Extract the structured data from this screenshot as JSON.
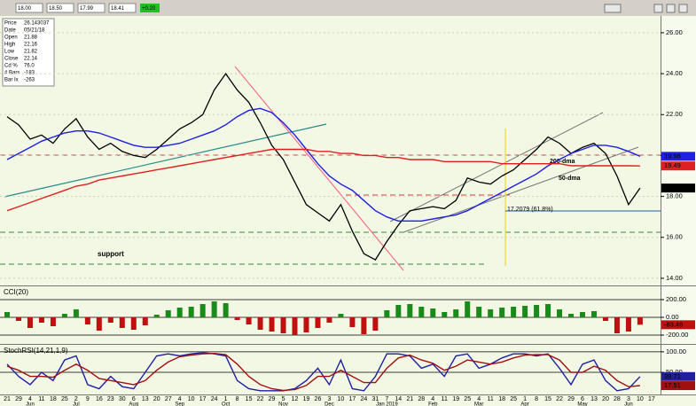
{
  "toolbar": {
    "values": [
      "18.00",
      "18.50",
      "17.99",
      "18.41"
    ],
    "change": "+0.20"
  },
  "info": {
    "rows": [
      [
        "Price",
        "26.143037"
      ],
      [
        "Date",
        "05/21/18"
      ],
      [
        "Open",
        "21.88"
      ],
      [
        "High",
        "22.16"
      ],
      [
        "Low",
        "21.82"
      ],
      [
        "Close",
        "22.14"
      ],
      [
        "Cd %",
        "76.0"
      ],
      [
        "# Bars",
        "-183"
      ],
      [
        "Bar Ix",
        "-263"
      ]
    ]
  },
  "chart_data": [
    {
      "type": "line",
      "categories": [
        "21",
        "29",
        "4",
        "11",
        "18",
        "25",
        "2",
        "9",
        "16",
        "23",
        "30",
        "6",
        "13",
        "20",
        "27",
        "4",
        "10",
        "17",
        "24",
        "1",
        "8",
        "15",
        "22",
        "29",
        "5",
        "12",
        "19",
        "26",
        "3",
        "10",
        "17",
        "24",
        "31",
        "7",
        "14",
        "21",
        "28",
        "4",
        "11",
        "19",
        "25",
        "4",
        "11",
        "18",
        "25",
        "1",
        "8",
        "15",
        "22",
        "29",
        "6",
        "13",
        "20",
        "28",
        "3",
        "10",
        "17"
      ],
      "month_labels": [
        null,
        null,
        "Jun",
        null,
        null,
        null,
        "Jul",
        null,
        null,
        null,
        null,
        "Aug",
        null,
        null,
        null,
        "Sep",
        null,
        null,
        null,
        "Oct",
        null,
        null,
        null,
        null,
        "Nov",
        null,
        null,
        null,
        "Dec",
        null,
        null,
        null,
        null,
        "Jan 2019",
        null,
        null,
        null,
        "Feb",
        null,
        null,
        null,
        "Mar",
        null,
        null,
        null,
        "Apr",
        null,
        null,
        null,
        null,
        "May",
        null,
        null,
        null,
        "Jun",
        null,
        null
      ],
      "series": [
        {
          "color": "#000000",
          "values": [
            21.9,
            21.5,
            20.8,
            21.0,
            20.6,
            21.3,
            21.8,
            20.9,
            20.3,
            20.6,
            20.2,
            20.0,
            19.9,
            20.3,
            20.8,
            21.3,
            21.6,
            22.0,
            23.2,
            24.0,
            23.2,
            22.6,
            21.6,
            20.5,
            19.8,
            18.7,
            17.6,
            17.2,
            16.8,
            17.6,
            16.3,
            15.2,
            14.9,
            15.8,
            16.6,
            17.3,
            17.4,
            17.5,
            17.4,
            17.8,
            18.9,
            18.7,
            18.6,
            19.0,
            19.3,
            19.8,
            20.3,
            20.9,
            20.6,
            20.1,
            20.4,
            20.6,
            20.1,
            19.0,
            17.6,
            18.41,
            null
          ]
        },
        {
          "name": "50-dma",
          "color": "#1f1fe0",
          "values": [
            19.8,
            20.1,
            20.4,
            20.7,
            20.9,
            21.1,
            21.2,
            21.2,
            21.1,
            20.9,
            20.7,
            20.5,
            20.4,
            20.4,
            20.5,
            20.6,
            20.8,
            21.0,
            21.2,
            21.5,
            21.9,
            22.2,
            22.3,
            22.1,
            21.6,
            21.0,
            20.3,
            19.6,
            19.0,
            18.6,
            18.3,
            17.8,
            17.3,
            17.0,
            16.8,
            16.8,
            16.8,
            16.9,
            17.0,
            17.1,
            17.3,
            17.6,
            17.9,
            18.2,
            18.5,
            18.8,
            19.1,
            19.5,
            19.8,
            20.1,
            20.3,
            20.5,
            20.5,
            20.4,
            20.2,
            19.96,
            null
          ]
        },
        {
          "name": "200-dma",
          "color": "#e02020",
          "values": [
            17.3,
            17.5,
            17.7,
            17.9,
            18.1,
            18.3,
            18.5,
            18.6,
            18.8,
            18.9,
            19.0,
            19.1,
            19.2,
            19.3,
            19.4,
            19.5,
            19.6,
            19.7,
            19.8,
            19.9,
            20.0,
            20.1,
            20.2,
            20.3,
            20.3,
            20.3,
            20.3,
            20.2,
            20.2,
            20.1,
            20.1,
            20.0,
            20.0,
            19.9,
            19.9,
            19.8,
            19.8,
            19.8,
            19.7,
            19.7,
            19.7,
            19.7,
            19.7,
            19.6,
            19.6,
            19.6,
            19.6,
            19.6,
            19.6,
            19.5,
            19.5,
            19.5,
            19.5,
            19.5,
            19.5,
            19.49,
            null
          ]
        }
      ],
      "annotations": [
        "support",
        "17.2079 (61.8%)"
      ],
      "ylim": [
        13.65,
        26.82
      ],
      "yticks": [
        {
          "value": 14,
          "label": "14.00"
        },
        {
          "value": 16,
          "label": "16.00"
        },
        {
          "value": 18,
          "label": "18.00"
        },
        {
          "value": 20,
          "label": "20.00"
        },
        {
          "value": 22,
          "label": "22.00"
        },
        {
          "value": 24,
          "label": "24.00"
        },
        {
          "value": 26,
          "label": "26.00"
        }
      ],
      "grid": true
    },
    {
      "type": "bar",
      "title": "CCI(20)",
      "positive_color": "#1a8a1a",
      "negative_color": "#c01010",
      "values": [
        60,
        -40,
        -120,
        -60,
        -100,
        40,
        90,
        -80,
        -150,
        -60,
        -120,
        -140,
        -90,
        30,
        80,
        110,
        120,
        150,
        180,
        160,
        -30,
        -80,
        -140,
        -160,
        -180,
        -200,
        -170,
        -120,
        -60,
        40,
        -110,
        -190,
        -150,
        80,
        140,
        150,
        120,
        100,
        60,
        90,
        180,
        120,
        90,
        110,
        120,
        130,
        140,
        150,
        90,
        40,
        60,
        70,
        -40,
        -180,
        -160,
        -83.46,
        null
      ],
      "ylim": [
        -300,
        350
      ],
      "yticks": [
        {
          "value": -200,
          "label": "-200.00"
        },
        {
          "value": 0,
          "label": "0.00"
        },
        {
          "value": 200,
          "label": "200.00"
        }
      ],
      "grid": true
    },
    {
      "type": "line",
      "title": "StochRSI(14,21,1,9)",
      "series": [
        {
          "color": "#1f1fa0",
          "values": [
            70,
            40,
            20,
            50,
            30,
            80,
            90,
            20,
            10,
            40,
            15,
            10,
            50,
            90,
            95,
            90,
            95,
            98,
            95,
            90,
            30,
            10,
            5,
            5,
            5,
            10,
            30,
            60,
            20,
            80,
            10,
            5,
            40,
            95,
            95,
            90,
            60,
            70,
            40,
            90,
            95,
            60,
            70,
            85,
            95,
            95,
            90,
            95,
            60,
            20,
            70,
            80,
            30,
            5,
            10,
            39.71,
            null
          ]
        },
        {
          "color": "#a01010",
          "values": [
            65,
            55,
            40,
            40,
            38,
            55,
            70,
            55,
            35,
            30,
            25,
            20,
            30,
            55,
            75,
            88,
            92,
            95,
            96,
            93,
            70,
            40,
            20,
            10,
            6,
            8,
            18,
            40,
            40,
            55,
            40,
            25,
            25,
            60,
            85,
            92,
            80,
            72,
            55,
            65,
            80,
            75,
            70,
            75,
            85,
            92,
            93,
            93,
            80,
            50,
            50,
            65,
            55,
            30,
            15,
            17.51,
            null
          ]
        }
      ],
      "ylim": [
        -4,
        117
      ],
      "yticks": [
        {
          "value": 50,
          "label": "50.00"
        },
        {
          "value": 100,
          "label": "100.00"
        }
      ],
      "grid": true
    }
  ]
}
